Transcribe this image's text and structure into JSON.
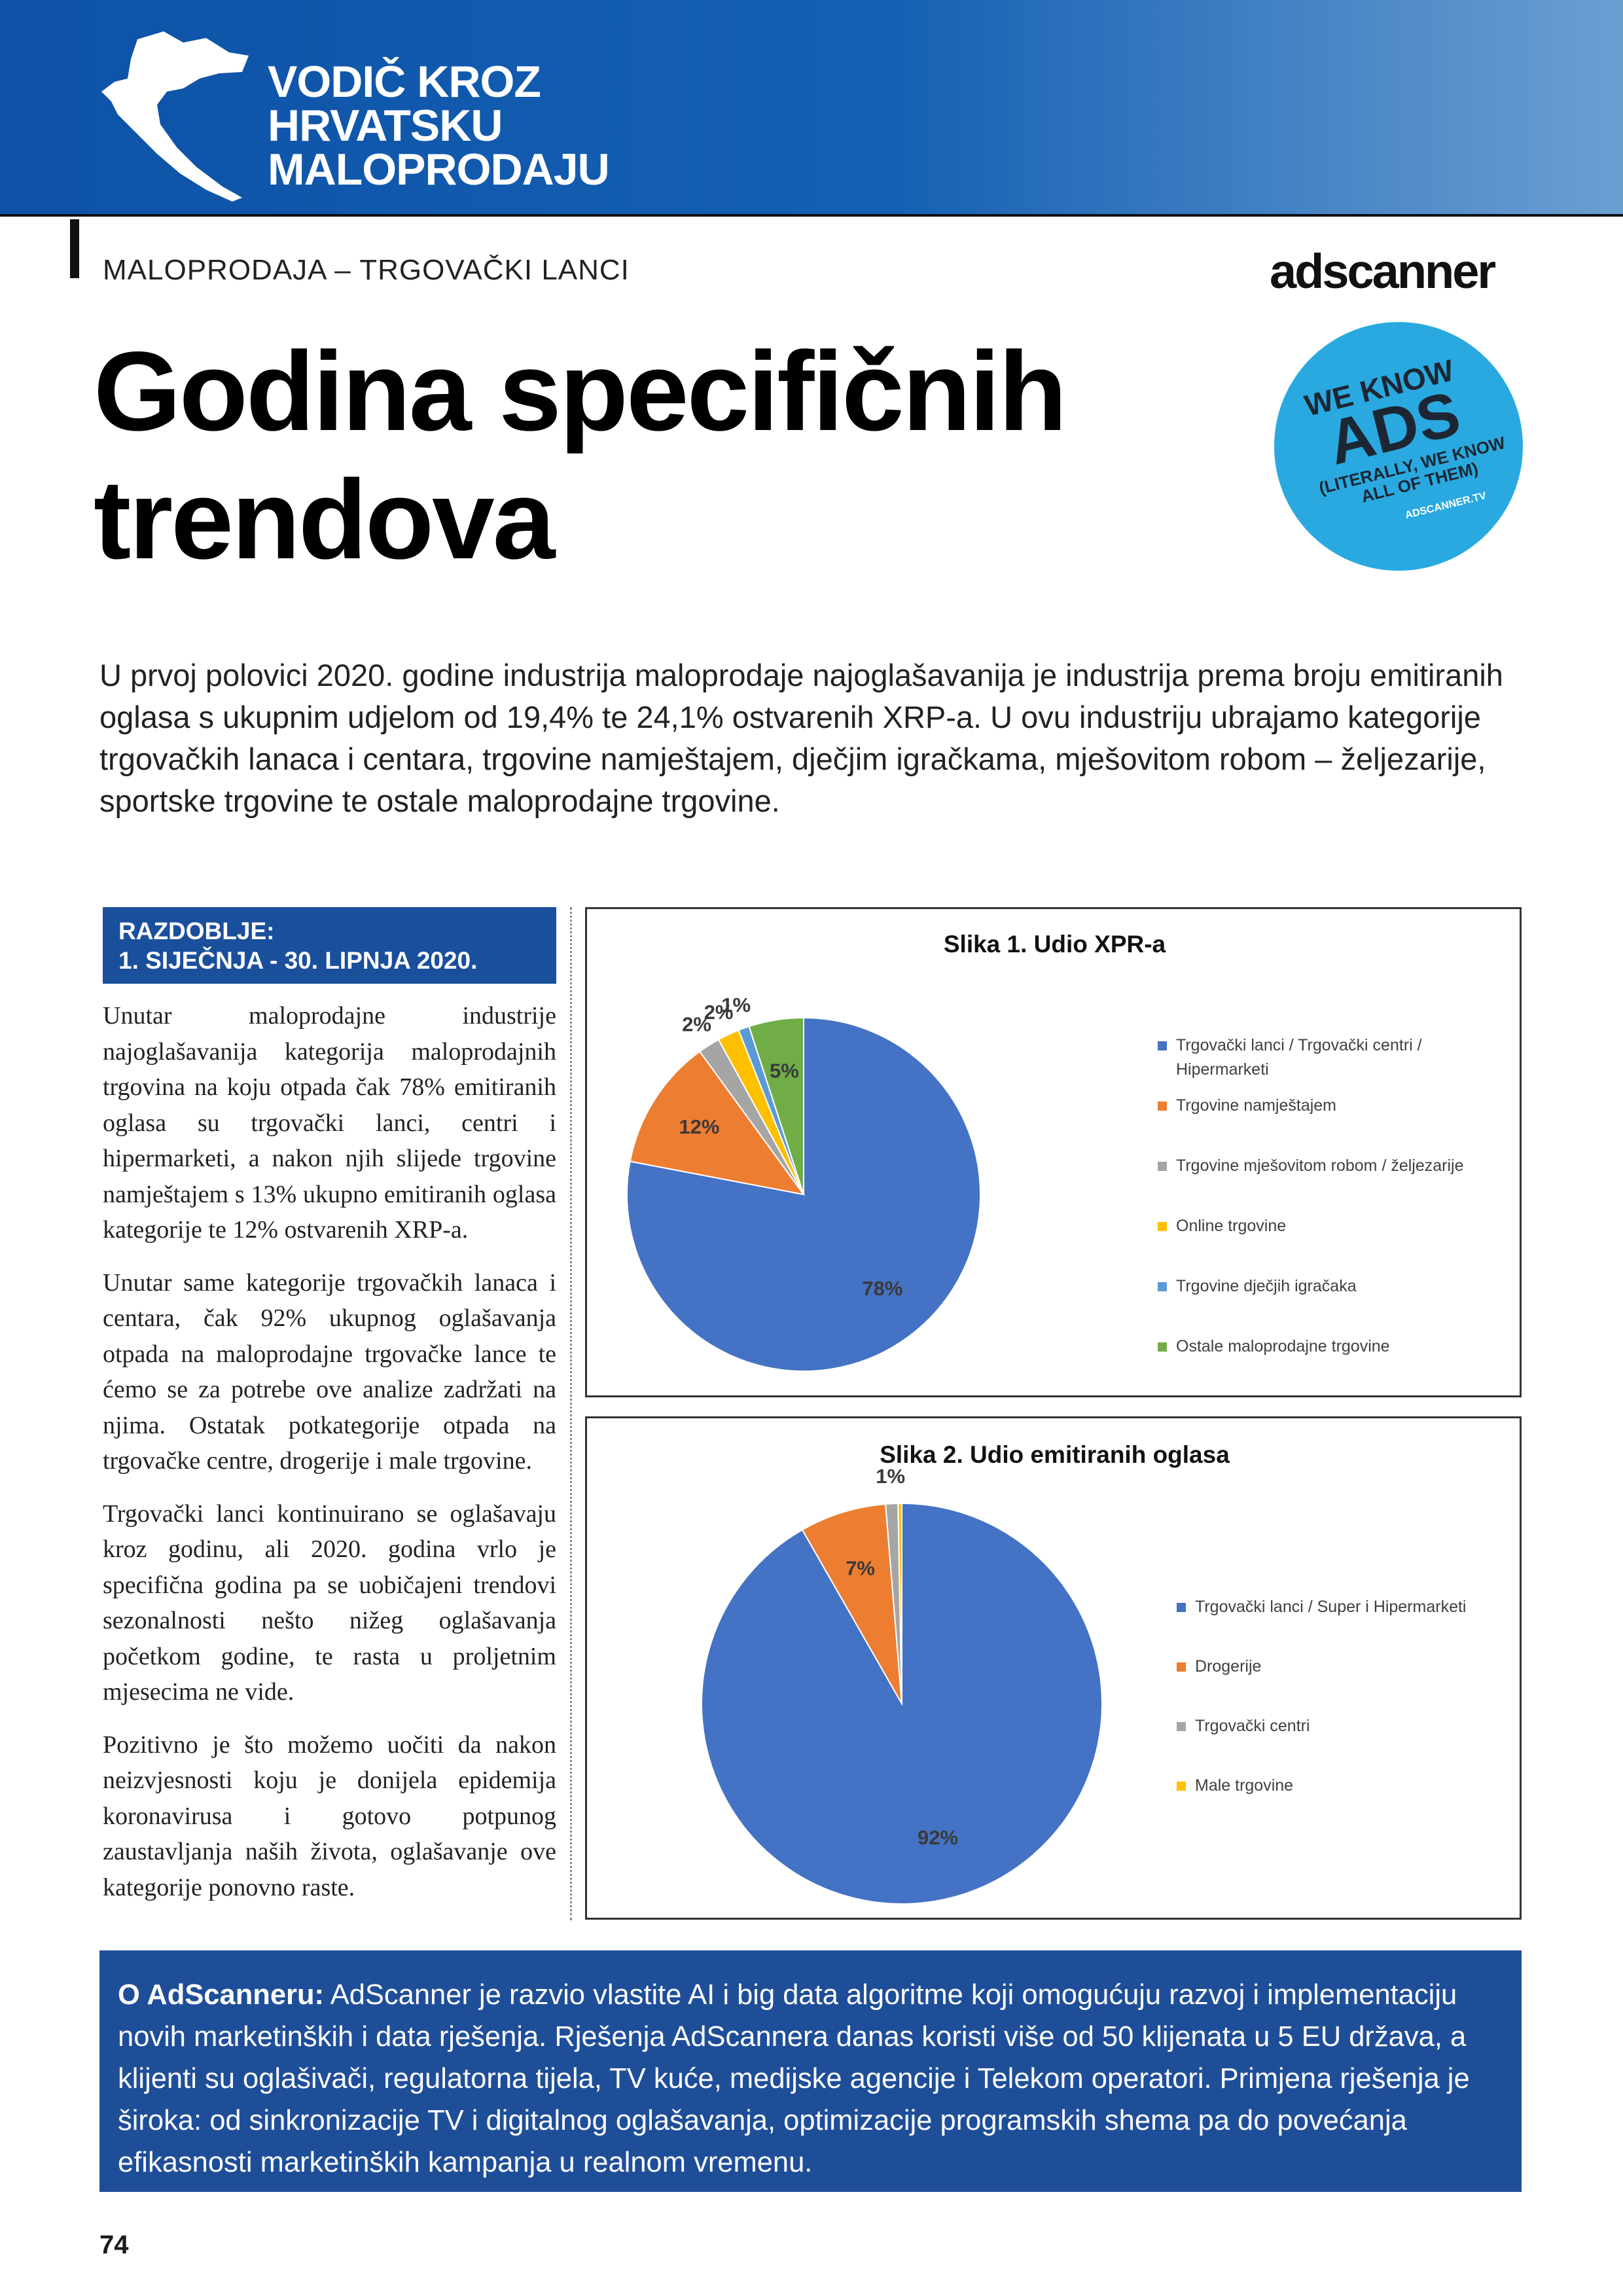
{
  "header": {
    "title_lines": [
      "VODIČ KROZ",
      "HRVATSKU",
      "MALOPRODAJU"
    ]
  },
  "section": "MALOPRODAJA – TRGOVAČKI LANCI",
  "logo": "adscanner",
  "badge": {
    "lines": [
      "WE KNOW",
      "ADS",
      "(LITERALLY, WE KNOW",
      "ALL OF THEM)",
      "ADSCANNER.TV"
    ]
  },
  "headline": [
    "Godina specifičnih",
    "trendova"
  ],
  "intro": "U prvoj polovici 2020. godine industrija maloprodaje najoglašavanija je industrija prema broju emitiranih oglasa s ukupnim udjelom od 19,4% te 24,1% ostvarenih XRP-a. U ovu industriju ubrajamo kategorije trgovačkih lanaca i centara, trgovine namještajem, dječjim igračkama, mješovitom robom – željezarije, sportske trgovine te ostale maloprodajne trgovine.",
  "period": [
    "RAZDOBLJE:",
    "1. SIJEČNJA - 30. LIPNJA 2020."
  ],
  "body": [
    "Unutar maloprodajne industrije najoglašavanija kategorija maloprodajnih trgovina na koju otpada čak 78% emitiranih oglasa su trgovački lanci, centri i hipermarketi, a nakon njih slijede trgovine namještajem s 13% ukupno emitiranih oglasa kategorije te 12% ostvarenih XRP-a.",
    "Unutar same kategorije trgovačkih lanaca i centara, čak 92% ukupnog oglašavanja otpada na maloprodajne trgovačke lance te ćemo se za potrebe ove analize zadržati na njima. Ostatak potkategorije otpada na trgovačke centre, drogerije i male trgovine.",
    "Trgovački lanci kontinuirano se oglašavaju kroz godinu, ali 2020. godina vrlo je specifična godina pa se uobičajeni trendovi sezonalnosti nešto nižeg oglašavanja početkom godine, te rasta u proljetnim mjesecima ne vide.",
    "Pozitivno je što možemo uočiti da nakon neizvjesnosti koju je donijela epidemija koronavirusa i gotovo potpunog zaustavljanja naših života, oglašavanje ove kategorije ponovno raste."
  ],
  "chart_data": [
    {
      "type": "pie",
      "title": "Slika 1. Udio XPR-a",
      "categories": [
        "Trgovački lanci / Trgovački centri / Hipermarketi",
        "Trgovine namještajem",
        "Trgovine mješovitom robom / željezarije",
        "Online trgovine",
        "Trgovine dječjih igračaka",
        "Ostale maloprodajne trgovine"
      ],
      "values": [
        78,
        12,
        2,
        2,
        1,
        5
      ],
      "value_labels": [
        "78%",
        "12%",
        "2%",
        "2%",
        "1%",
        "5%"
      ],
      "colors": [
        "#4472c4",
        "#ed7d31",
        "#a5a5a5",
        "#ffc000",
        "#5b9bd5",
        "#70ad47"
      ],
      "legend": "right"
    },
    {
      "type": "pie",
      "title": "Slika 2. Udio emitiranih oglasa",
      "categories": [
        "Trgovački lanci / Super i Hipermarketi",
        "Drogerije",
        "Trgovački centri",
        "Male trgovine"
      ],
      "values": [
        92,
        7,
        1,
        0.3
      ],
      "value_labels": [
        "92%",
        "7%",
        "1%",
        null
      ],
      "colors": [
        "#4472c4",
        "#ed7d31",
        "#a5a5a5",
        "#ffc000"
      ],
      "legend": "right"
    }
  ],
  "footer": {
    "label": "O AdScanneru:",
    "text": "AdScanner je razvio vlastite AI i big data algoritme koji omogućuju razvoj i implementaciju novih marketinških i data rješenja. Rješenja AdScannera danas koristi više od 50 klijenata u 5 EU država, a klijenti su oglašivači, regulatorna tijela, TV kuće, medijske agencije i Telekom operatori. Primjena rješenja je široka: od sinkronizacije TV i digitalnog oglašavanja, optimizacije programskih shema pa do povećanja efikasnosti marketinških kampanja u realnom vremenu."
  },
  "page_number": "74"
}
